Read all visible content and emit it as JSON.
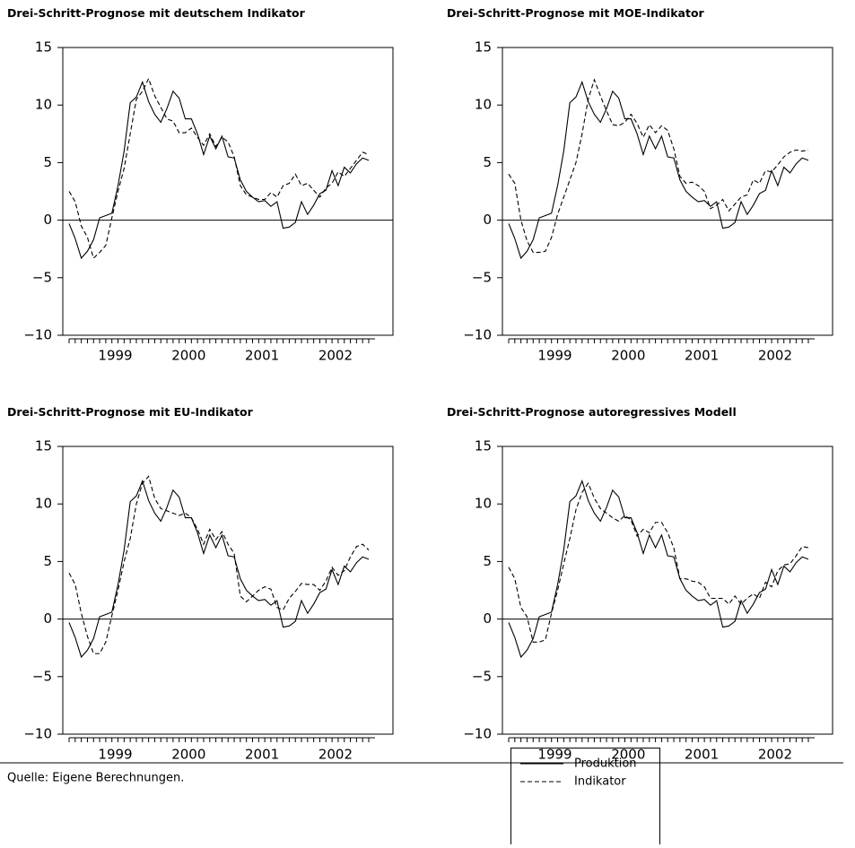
{
  "chart_data": [
    {
      "type": "line",
      "title": "Drei-Schritt-Prognose mit deutschem Indikator",
      "categories": [
        null,
        null,
        null,
        null,
        null,
        null,
        null,
        null,
        "1999",
        null,
        null,
        null,
        null,
        null,
        null,
        null,
        null,
        null,
        null,
        null,
        "2000",
        null,
        null,
        null,
        null,
        null,
        null,
        null,
        null,
        null,
        null,
        null,
        "2001",
        null,
        null,
        null,
        null,
        null,
        null,
        null,
        null,
        null,
        null,
        null,
        "2002",
        null,
        null,
        null,
        null,
        null
      ],
      "ylim": [
        -10,
        15
      ],
      "yticks": [
        {
          "value": -10,
          "label": "−10"
        },
        {
          "value": -5,
          "label": "−5"
        },
        0,
        5,
        10,
        15
      ],
      "series": [
        {
          "name": "Produktion",
          "color": "#000000",
          "style": "solid",
          "values": [
            -0.3,
            -1.6,
            -3.3,
            -2.7,
            -1.7,
            0.2,
            0.4,
            0.6,
            3.0,
            6.0,
            10.2,
            10.7,
            12.0,
            10.3,
            9.2,
            8.5,
            9.7,
            11.2,
            10.6,
            8.8,
            8.8,
            7.5,
            5.7,
            7.3,
            6.2,
            7.3,
            5.5,
            5.4,
            3.5,
            2.5,
            2.0,
            1.6,
            1.7,
            1.2,
            1.6,
            -0.7,
            -0.6,
            -0.2,
            1.6,
            0.5,
            1.3,
            2.3,
            2.6,
            4.3,
            3.0,
            4.6,
            4.1,
            4.9,
            5.4,
            5.2
          ]
        },
        {
          "name": "Indikator",
          "color": "#000000",
          "style": "dashed",
          "values": [
            2.5,
            1.6,
            -0.5,
            -1.5,
            -3.3,
            -2.8,
            -2.2,
            0.2,
            2.5,
            4.5,
            7.5,
            10.5,
            11.2,
            12.3,
            10.8,
            9.8,
            8.8,
            8.6,
            7.6,
            7.6,
            8.0,
            7.2,
            6.5,
            7.5,
            6.4,
            7.2,
            6.8,
            5.5,
            3.0,
            2.2,
            2.0,
            1.8,
            1.8,
            2.4,
            2.0,
            3.0,
            3.2,
            4.0,
            3.0,
            3.2,
            2.6,
            2.0,
            2.8,
            3.2,
            4.2,
            3.8,
            4.5,
            5.2,
            5.9,
            5.7
          ]
        }
      ]
    },
    {
      "type": "line",
      "title": "Drei-Schritt-Prognose mit MOE-Indikator",
      "categories": [
        null,
        null,
        null,
        null,
        null,
        null,
        null,
        null,
        "1999",
        null,
        null,
        null,
        null,
        null,
        null,
        null,
        null,
        null,
        null,
        null,
        "2000",
        null,
        null,
        null,
        null,
        null,
        null,
        null,
        null,
        null,
        null,
        null,
        "2001",
        null,
        null,
        null,
        null,
        null,
        null,
        null,
        null,
        null,
        null,
        null,
        "2002",
        null,
        null,
        null,
        null,
        null
      ],
      "ylim": [
        -10,
        15
      ],
      "yticks": [
        {
          "value": -10,
          "label": "−10"
        },
        {
          "value": -5,
          "label": "−5"
        },
        0,
        5,
        10,
        15
      ],
      "series": [
        {
          "color": "#000000",
          "style": "solid",
          "values": [
            -0.3,
            -1.6,
            -3.3,
            -2.7,
            -1.7,
            0.2,
            0.4,
            0.6,
            3.0,
            6.0,
            10.2,
            10.7,
            12.0,
            10.3,
            9.2,
            8.5,
            9.7,
            11.2,
            10.6,
            8.8,
            8.8,
            7.5,
            5.7,
            7.3,
            6.2,
            7.3,
            5.5,
            5.4,
            3.5,
            2.5,
            2.0,
            1.6,
            1.7,
            1.2,
            1.6,
            -0.7,
            -0.6,
            -0.2,
            1.6,
            0.5,
            1.3,
            2.3,
            2.6,
            4.3,
            3.0,
            4.6,
            4.1,
            4.9,
            5.4,
            5.2
          ]
        },
        {
          "color": "#000000",
          "style": "dashed",
          "values": [
            4.0,
            3.2,
            0.0,
            -1.8,
            -2.8,
            -2.8,
            -2.7,
            -1.5,
            0.5,
            2.0,
            3.5,
            5.0,
            7.5,
            10.5,
            12.2,
            10.8,
            9.5,
            8.3,
            8.2,
            8.5,
            9.2,
            8.4,
            7.2,
            8.3,
            7.6,
            8.2,
            7.8,
            6.2,
            3.8,
            3.2,
            3.3,
            3.0,
            2.5,
            1.0,
            1.3,
            1.8,
            0.8,
            1.4,
            2.0,
            2.2,
            3.5,
            3.2,
            4.3,
            4.2,
            4.8,
            5.5,
            5.9,
            6.1,
            6.0,
            6.1
          ]
        }
      ]
    },
    {
      "type": "line",
      "title": "Drei-Schritt-Prognose mit EU-Indikator",
      "categories": [
        null,
        null,
        null,
        null,
        null,
        null,
        null,
        null,
        "1999",
        null,
        null,
        null,
        null,
        null,
        null,
        null,
        null,
        null,
        null,
        null,
        "2000",
        null,
        null,
        null,
        null,
        null,
        null,
        null,
        null,
        null,
        null,
        null,
        "2001",
        null,
        null,
        null,
        null,
        null,
        null,
        null,
        null,
        null,
        null,
        null,
        "2002",
        null,
        null,
        null,
        null,
        null
      ],
      "ylim": [
        -10,
        15
      ],
      "yticks": [
        {
          "value": -10,
          "label": "−10"
        },
        {
          "value": -5,
          "label": "−5"
        },
        0,
        5,
        10,
        15
      ],
      "series": [
        {
          "color": "#000000",
          "style": "solid",
          "values": [
            -0.3,
            -1.6,
            -3.3,
            -2.7,
            -1.7,
            0.2,
            0.4,
            0.6,
            3.0,
            6.0,
            10.2,
            10.7,
            12.0,
            10.3,
            9.2,
            8.5,
            9.7,
            11.2,
            10.6,
            8.8,
            8.8,
            7.5,
            5.7,
            7.3,
            6.2,
            7.3,
            5.5,
            5.4,
            3.5,
            2.5,
            2.0,
            1.6,
            1.7,
            1.2,
            1.6,
            -0.7,
            -0.6,
            -0.2,
            1.6,
            0.5,
            1.3,
            2.3,
            2.6,
            4.3,
            3.0,
            4.6,
            4.1,
            4.9,
            5.4,
            5.2
          ]
        },
        {
          "color": "#000000",
          "style": "dashed",
          "values": [
            4.0,
            3.0,
            0.5,
            -1.5,
            -3.0,
            -3.0,
            -2.0,
            0.3,
            2.5,
            5.0,
            7.0,
            10.0,
            11.8,
            12.4,
            10.5,
            9.6,
            9.4,
            9.2,
            9.0,
            9.2,
            8.8,
            7.8,
            6.5,
            7.8,
            6.9,
            7.6,
            6.5,
            5.7,
            2.0,
            1.5,
            2.0,
            2.5,
            2.8,
            2.6,
            1.0,
            0.8,
            1.8,
            2.4,
            3.1,
            3.0,
            3.0,
            2.5,
            3.3,
            4.5,
            3.8,
            4.2,
            5.4,
            6.3,
            6.5,
            6.0
          ]
        }
      ]
    },
    {
      "type": "line",
      "title": "Drei-Schritt-Prognose autoregressives Modell",
      "categories": [
        null,
        null,
        null,
        null,
        null,
        null,
        null,
        null,
        "1999",
        null,
        null,
        null,
        null,
        null,
        null,
        null,
        null,
        null,
        null,
        null,
        "2000",
        null,
        null,
        null,
        null,
        null,
        null,
        null,
        null,
        null,
        null,
        null,
        "2001",
        null,
        null,
        null,
        null,
        null,
        null,
        null,
        null,
        null,
        null,
        null,
        "2002",
        null,
        null,
        null,
        null,
        null
      ],
      "ylim": [
        -10,
        15
      ],
      "yticks": [
        {
          "value": -10,
          "label": "−10"
        },
        {
          "value": -5,
          "label": "−5"
        },
        0,
        5,
        10,
        15
      ],
      "series": [
        {
          "color": "#000000",
          "style": "solid",
          "values": [
            -0.3,
            -1.6,
            -3.3,
            -2.7,
            -1.7,
            0.2,
            0.4,
            0.6,
            3.0,
            6.0,
            10.2,
            10.7,
            12.0,
            10.3,
            9.2,
            8.5,
            9.7,
            11.2,
            10.6,
            8.8,
            8.8,
            7.5,
            5.7,
            7.3,
            6.2,
            7.3,
            5.5,
            5.4,
            3.5,
            2.5,
            2.0,
            1.6,
            1.7,
            1.2,
            1.6,
            -0.7,
            -0.6,
            -0.2,
            1.6,
            0.5,
            1.3,
            2.3,
            2.6,
            4.3,
            3.0,
            4.6,
            4.1,
            4.9,
            5.4,
            5.2
          ]
        },
        {
          "color": "#000000",
          "style": "dashed",
          "values": [
            4.5,
            3.5,
            1.0,
            0.2,
            -2.0,
            -2.0,
            -1.8,
            0.5,
            2.5,
            4.8,
            7.0,
            9.5,
            11.0,
            11.8,
            10.5,
            9.6,
            9.2,
            8.8,
            8.5,
            9.0,
            8.6,
            7.2,
            7.8,
            7.5,
            8.4,
            8.4,
            7.5,
            6.2,
            3.5,
            3.5,
            3.3,
            3.2,
            2.8,
            1.8,
            1.8,
            1.8,
            1.3,
            2.0,
            1.3,
            1.8,
            2.2,
            1.8,
            3.2,
            2.8,
            4.2,
            4.7,
            4.8,
            5.5,
            6.3,
            6.2
          ]
        }
      ]
    }
  ],
  "source": "Quelle: Eigene Berechnungen."
}
